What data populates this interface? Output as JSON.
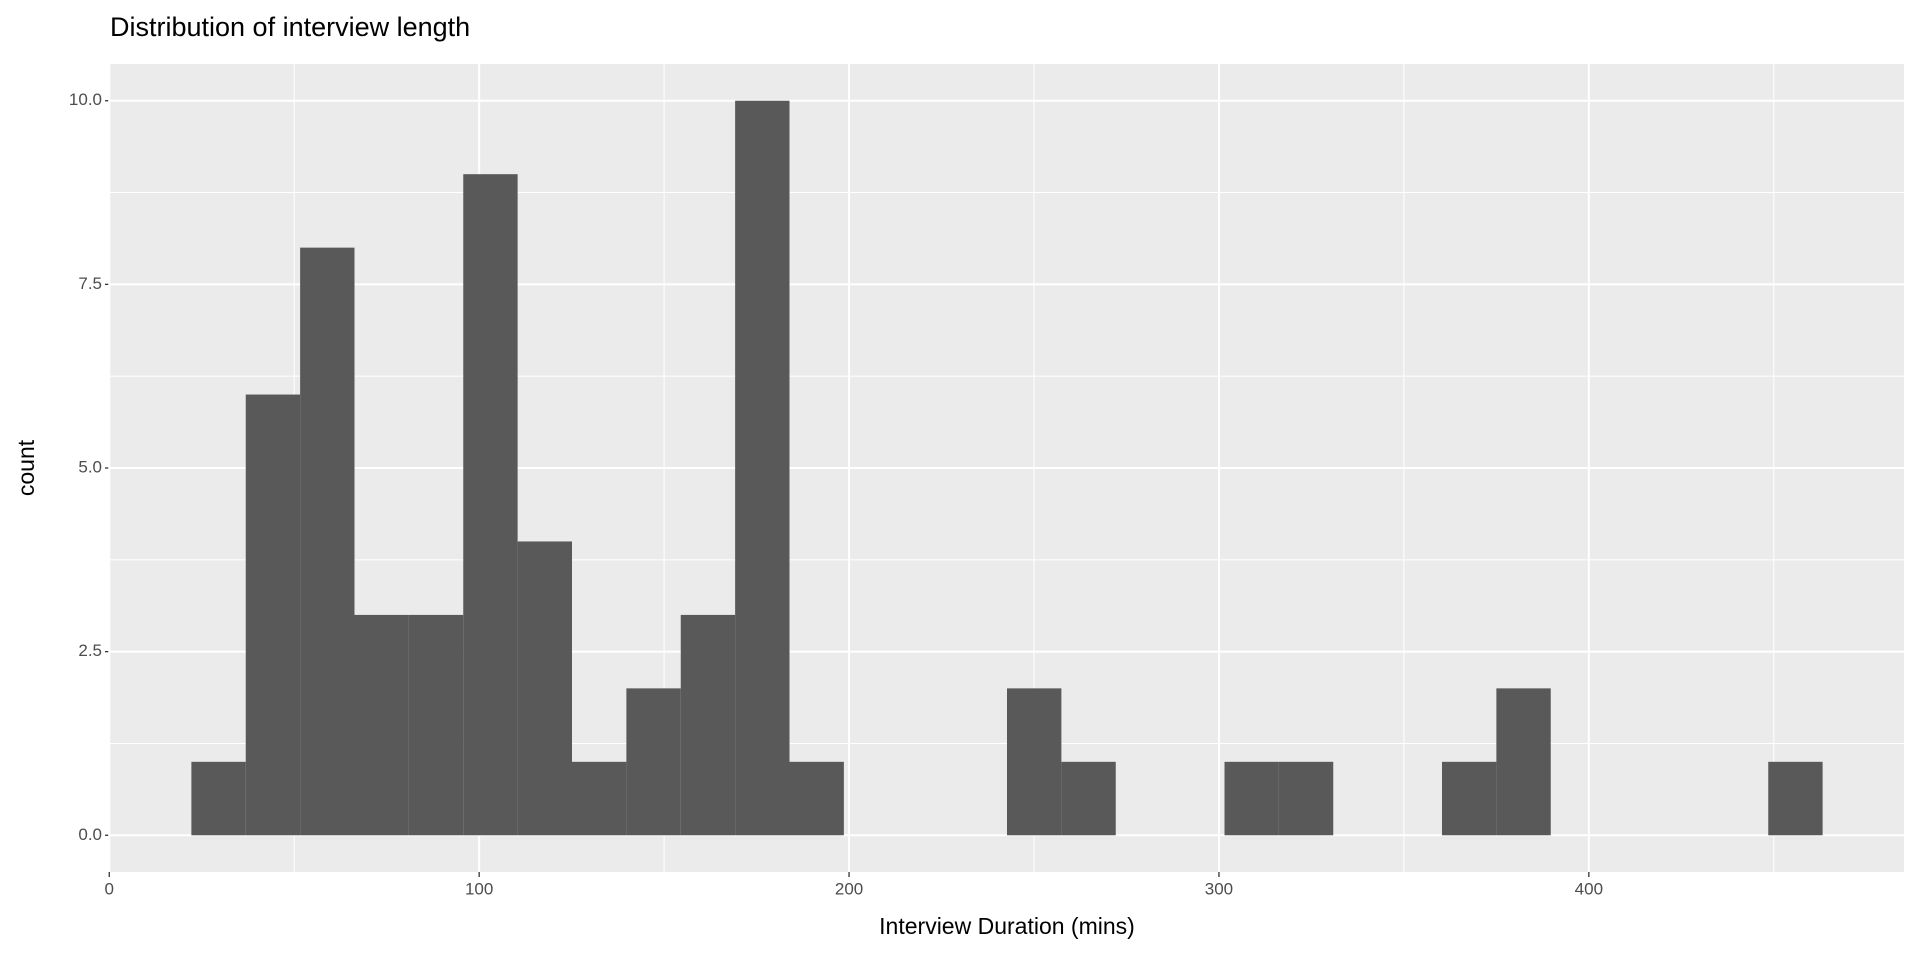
{
  "chart_data": {
    "type": "histogram",
    "title": "Distribution of interview length",
    "x_label": "Interview Duration (mins)",
    "y_label": "count",
    "bins": [
      22.2,
      36.9,
      51.6,
      66.3,
      81,
      95.7,
      110.4,
      125.1,
      139.8,
      154.5,
      169.2,
      183.9,
      198.6,
      213.3,
      228,
      242.7,
      257.4,
      272.1,
      286.8,
      301.5,
      316.2,
      330.9,
      345.6,
      360.3,
      375,
      389.7,
      404.4,
      419.1,
      433.8,
      448.5,
      463.2
    ],
    "values": [
      1,
      6,
      8,
      3,
      3,
      9,
      4,
      1,
      2,
      3,
      10,
      1,
      0,
      0,
      0,
      2,
      1,
      0,
      0,
      1,
      1,
      0,
      0,
      1,
      2,
      0,
      0,
      0,
      0,
      1
    ],
    "color": "#595959",
    "xlim": [
      0.2,
      485.2
    ],
    "xticks": [
      0,
      100,
      200,
      300,
      400
    ],
    "ylim": [
      -0.5,
      10.5
    ],
    "yticks": [
      {
        "value": 0,
        "label": "0.0"
      },
      {
        "value": 2.5,
        "label": "2.5"
      },
      {
        "value": 5,
        "label": "5.0"
      },
      {
        "value": 7.5,
        "label": "7.5"
      },
      {
        "value": 10,
        "label": "10.0"
      }
    ],
    "grid": true,
    "minor_grid": true,
    "panel_color": "#ebebeb"
  }
}
